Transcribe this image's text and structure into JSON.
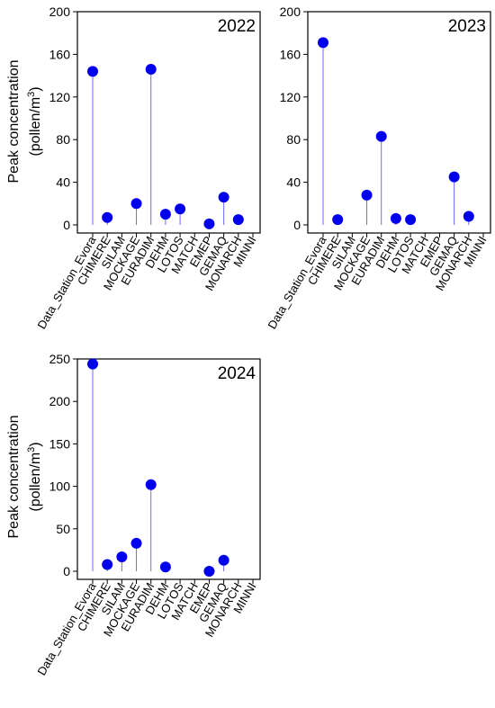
{
  "y_axis_label": {
    "line1": "Peak concentration",
    "line2_prefix": "(pollen/m",
    "line2_sup": "3",
    "line2_suffix": ")"
  },
  "chart_data": [
    {
      "type": "lollipop",
      "year_label": "2022",
      "categories": [
        "Data_Station_Evora",
        "CHIMERE",
        "SILAM",
        "MOCKAGE",
        "EURADIM",
        "DEHM",
        "LOTOS",
        "MATCH",
        "EMEP",
        "GEMAQ",
        "MONARCH",
        "MINNI"
      ],
      "values": [
        144,
        7,
        null,
        20,
        146,
        10,
        15,
        null,
        1,
        26,
        5,
        null
      ],
      "ylim": [
        0,
        200
      ],
      "yticks": [
        0,
        40,
        80,
        120,
        160,
        200
      ],
      "marker_color": "#0000ee",
      "stem_color": "#6a6aff"
    },
    {
      "type": "lollipop",
      "year_label": "2023",
      "categories": [
        "Data_Station_Evora",
        "CHIMERE",
        "SILAM",
        "MOCKAGE",
        "EURADIM",
        "DEHM",
        "LOTOS",
        "MATCH",
        "EMEP",
        "GEMAQ",
        "MONARCH",
        "MINNI"
      ],
      "values": [
        171,
        5,
        null,
        28,
        83,
        6,
        5,
        null,
        null,
        45,
        8,
        null
      ],
      "ylim": [
        0,
        200
      ],
      "yticks": [
        0,
        40,
        80,
        120,
        160,
        200
      ],
      "marker_color": "#0000ee",
      "stem_color": "#6a6aff"
    },
    {
      "type": "lollipop",
      "year_label": "2024",
      "categories": [
        "Data_Station_Evora",
        "CHIMERE",
        "SILAM",
        "MOCKAGE",
        "EURADIM",
        "DEHM",
        "LOTOS",
        "MATCH",
        "EMEP",
        "GEMAQ",
        "MONARCH",
        "MINNI"
      ],
      "values": [
        244,
        8,
        17,
        33,
        102,
        5,
        null,
        null,
        0,
        13,
        null,
        null
      ],
      "ylim": [
        0,
        250
      ],
      "yticks": [
        0,
        50,
        100,
        150,
        200,
        250
      ],
      "marker_color": "#0000ee",
      "stem_color": "#6a6aff"
    }
  ]
}
